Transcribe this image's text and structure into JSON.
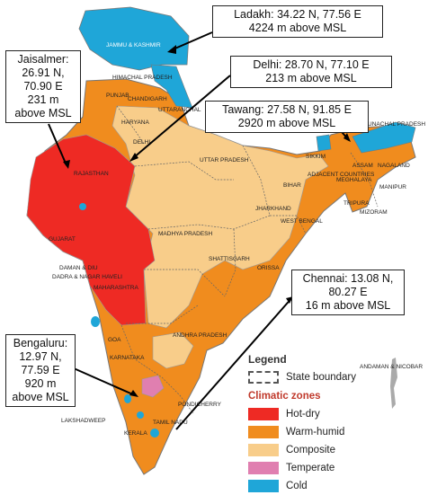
{
  "callouts": {
    "ladakh": [
      "Ladakh: 34.22 N, 77.56 E",
      "4224 m above MSL"
    ],
    "delhi": [
      "Delhi: 28.70 N, 77.10 E",
      "213 m above MSL"
    ],
    "tawang": [
      "Tawang: 27.58 N, 91.85 E",
      "2920 m above MSL"
    ],
    "jaisalmer": [
      "Jaisalmer:",
      "26.91 N,",
      "70.90 E",
      "231 m",
      "above MSL"
    ],
    "chennai": [
      "Chennai: 13.08 N,",
      "80.27 E",
      "16 m above MSL"
    ],
    "bengaluru": [
      "Bengaluru:",
      "12.97 N,",
      "77.59 E",
      "920 m",
      "above MSL"
    ]
  },
  "legend": {
    "title": "Legend",
    "boundary_label": "State boundary",
    "zones_title": "Climatic zones",
    "zones": [
      {
        "label": "Hot-dry",
        "color": "#ee2a24"
      },
      {
        "label": "Warm-humid",
        "color": "#f08c1e"
      },
      {
        "label": "Composite",
        "color": "#f8cd8a"
      },
      {
        "label": "Temperate",
        "color": "#e07fb0"
      },
      {
        "label": "Cold",
        "color": "#1fa6d8"
      }
    ]
  },
  "state_labels": {
    "jk": "JAMMU & KASHMIR",
    "hp": "HIMACHAL PRADESH",
    "punjab": "PUNJAB",
    "chandigarh": "CHANDIGARH",
    "uttaranchal": "UTTARANCHAL",
    "haryana": "HARYANA",
    "delhi": "DELHI",
    "rajasthan": "RAJASTHAN",
    "up": "UTTAR PRADESH",
    "bihar": "BIHAR",
    "sikkim": "SIKKIM",
    "arunachal": "ARUNACHAL PRADESH",
    "assam": "ASSAM",
    "nagaland": "NAGALAND",
    "adjacent": "ADJACENT COUNTRIES",
    "meghalaya": "MEGHALAYA",
    "manipur": "MANIPUR",
    "tripura": "TRIPURA",
    "mizoram": "MIZORAM",
    "gujarat": "GUJARAT",
    "mp": "MADHYA PRADESH",
    "jharkhand": "JHARKHAND",
    "wb": "WEST BENGAL",
    "chhattisgarh": "SHATTISGARH",
    "orissa": "ORISSA",
    "daman": "DAMAN & DIU",
    "dadra": "DADRA & NAGAR HAVELI",
    "maharashtra": "MAHARASHTRA",
    "ap": "ANDHRA PRADESH",
    "goa": "GOA",
    "karnataka": "KARNATAKA",
    "pondicherry": "PONDICHERRY",
    "lakshadweep": "LAKSHADWEEP",
    "tn": "TAMIL NADU",
    "kerala": "KERALA",
    "andaman": "ANDAMAN & NICOBAR"
  }
}
